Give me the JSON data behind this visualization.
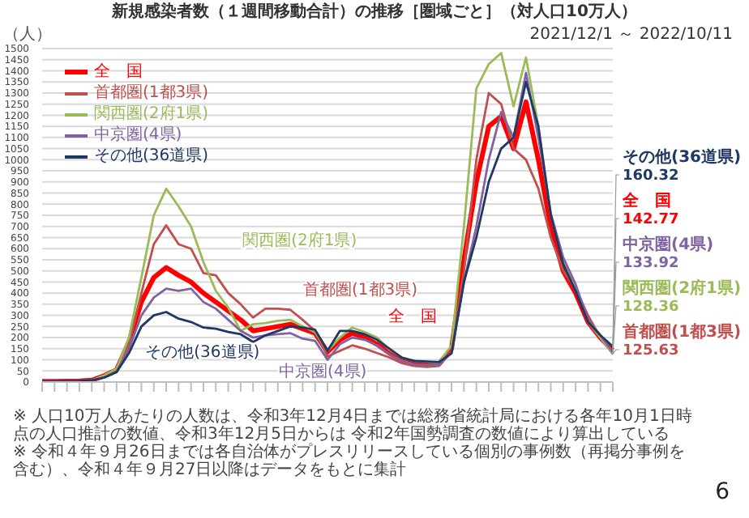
{
  "chart_data": {
    "type": "line",
    "title": "新規感染者数（１週間移動合計）の推移［圏域ごと］（対人口10万人）",
    "subtitle": "2021/12/1 ～ 2022/10/11",
    "categories": [
      null,
      null,
      null,
      null,
      null,
      null,
      null,
      null,
      null,
      null,
      null,
      null,
      null,
      null,
      null,
      null,
      null,
      null,
      null,
      null,
      null,
      null,
      null,
      null,
      null,
      null,
      null,
      null,
      null,
      null,
      null,
      null,
      null,
      null,
      null,
      null,
      null,
      null,
      null,
      null,
      null,
      null,
      null,
      null,
      null,
      null,
      null
    ],
    "series": [
      {
        "name": "全　国",
        "color": "#ff0000",
        "values": [
          3,
          3,
          4,
          5,
          8,
          28,
          55,
          180,
          360,
          470,
          515,
          480,
          450,
          400,
          360,
          320,
          280,
          230,
          240,
          250,
          260,
          240,
          220,
          135,
          190,
          220,
          200,
          170,
          130,
          100,
          85,
          80,
          82,
          150,
          550,
          900,
          1150,
          1195,
          1050,
          1260,
          1000,
          700,
          500,
          400,
          270,
          200,
          142.77
        ],
        "value_labels": [
          null,
          null,
          null,
          null,
          null,
          null,
          null,
          null,
          null,
          null,
          null,
          null,
          null,
          null,
          null,
          null,
          null,
          null,
          null,
          null,
          null,
          null,
          null,
          null,
          null,
          null,
          null,
          null,
          null,
          null,
          null,
          null,
          null,
          null,
          null,
          null,
          null,
          null,
          null,
          null,
          null,
          null,
          null,
          null,
          null,
          null,
          "142.77"
        ]
      },
      {
        "name": "首都圏(1都3県)",
        "color": "#c0504d",
        "values": [
          3,
          3,
          4,
          5,
          8,
          25,
          50,
          170,
          400,
          620,
          705,
          620,
          600,
          490,
          480,
          400,
          350,
          290,
          330,
          330,
          325,
          280,
          230,
          115,
          140,
          165,
          150,
          130,
          110,
          85,
          72,
          68,
          72,
          140,
          500,
          1000,
          1300,
          1250,
          1050,
          1000,
          870,
          650,
          500,
          420,
          300,
          200,
          125.63
        ],
        "value_labels": [
          null,
          null,
          null,
          null,
          null,
          null,
          null,
          null,
          null,
          null,
          null,
          null,
          null,
          null,
          null,
          null,
          null,
          null,
          null,
          null,
          null,
          null,
          null,
          null,
          null,
          null,
          null,
          null,
          null,
          null,
          null,
          null,
          null,
          null,
          null,
          null,
          null,
          null,
          null,
          null,
          null,
          null,
          null,
          null,
          null,
          null,
          "125.63"
        ]
      },
      {
        "name": "関西圏(2府1県)",
        "color": "#9bbb59",
        "values": [
          null,
          null,
          null,
          null,
          8,
          30,
          60,
          200,
          470,
          750,
          870,
          790,
          700,
          540,
          410,
          335,
          230,
          260,
          265,
          275,
          280,
          250,
          225,
          140,
          200,
          245,
          225,
          200,
          145,
          110,
          95,
          90,
          88,
          165,
          700,
          1320,
          1430,
          1480,
          1240,
          1460,
          1150,
          750,
          540,
          420,
          270,
          200,
          128.36
        ],
        "value_labels": [
          null,
          null,
          null,
          null,
          null,
          null,
          null,
          null,
          null,
          null,
          null,
          null,
          null,
          null,
          null,
          null,
          null,
          null,
          null,
          null,
          null,
          null,
          null,
          null,
          null,
          null,
          null,
          null,
          null,
          null,
          null,
          null,
          null,
          null,
          null,
          null,
          null,
          null,
          null,
          null,
          null,
          null,
          null,
          null,
          null,
          null,
          "128.36"
        ]
      },
      {
        "name": "中京圏(4県)",
        "color": "#8064a2",
        "values": [
          3,
          3,
          4,
          5,
          8,
          20,
          45,
          150,
          300,
          380,
          420,
          410,
          420,
          360,
          330,
          280,
          230,
          200,
          210,
          215,
          220,
          195,
          185,
          100,
          170,
          200,
          190,
          165,
          125,
          95,
          80,
          75,
          80,
          130,
          450,
          700,
          1000,
          1215,
          1100,
          1390,
          1100,
          760,
          560,
          440,
          280,
          210,
          133.92
        ],
        "value_labels": [
          null,
          null,
          null,
          null,
          null,
          null,
          null,
          null,
          null,
          null,
          null,
          null,
          null,
          null,
          null,
          null,
          null,
          null,
          null,
          null,
          null,
          null,
          null,
          null,
          null,
          null,
          null,
          null,
          null,
          null,
          null,
          null,
          null,
          null,
          null,
          null,
          null,
          null,
          null,
          null,
          null,
          null,
          null,
          null,
          null,
          null,
          "133.92"
        ]
      },
      {
        "name": "その他(36道県)",
        "color": "#1f3864",
        "values": [
          3,
          3,
          4,
          5,
          8,
          20,
          45,
          130,
          250,
          300,
          315,
          285,
          270,
          245,
          240,
          225,
          215,
          180,
          210,
          230,
          250,
          245,
          235,
          140,
          230,
          230,
          215,
          190,
          150,
          110,
          95,
          92,
          90,
          130,
          450,
          650,
          900,
          1050,
          1100,
          1350,
          1150,
          750,
          530,
          410,
          270,
          210,
          160.32
        ],
        "value_labels": [
          null,
          null,
          null,
          null,
          null,
          null,
          null,
          null,
          null,
          null,
          null,
          null,
          null,
          null,
          null,
          null,
          null,
          null,
          null,
          null,
          null,
          null,
          null,
          null,
          null,
          null,
          null,
          null,
          null,
          null,
          null,
          null,
          null,
          null,
          null,
          null,
          null,
          null,
          null,
          null,
          null,
          null,
          null,
          null,
          null,
          null,
          "160.32"
        ]
      }
    ],
    "ylim": [
      0,
      1500
    ],
    "yticks": [
      0,
      50,
      100,
      150,
      200,
      250,
      300,
      350,
      400,
      450,
      500,
      550,
      600,
      650,
      700,
      750,
      800,
      850,
      900,
      950,
      1000,
      1050,
      1100,
      1150,
      1200,
      1250,
      1300,
      1350,
      1400,
      1450,
      1500
    ],
    "grid": "y",
    "legend": "top left",
    "marker": "none",
    "line_style": "solid",
    "annotations": [
      "関西圏(2府1県)",
      "首都圏(1都3県)",
      "全　国",
      "中京圏(4県)",
      "その他(36道県)",
      "（人）",
      "※ 人口10万人あたりの人数は、令和3年12月4日までは総務省統計局における各年10月1日時点の人口推計の数値、令和3年12月5日からは 令和2年国勢調査の数値により算出している",
      "※ 令和４年９月26日までは各自治体がプレスリリースしている個別の事例数（再掲分事例を含む）、令和４年９月27日以降はデータをもとに集計",
      "6"
    ]
  }
}
